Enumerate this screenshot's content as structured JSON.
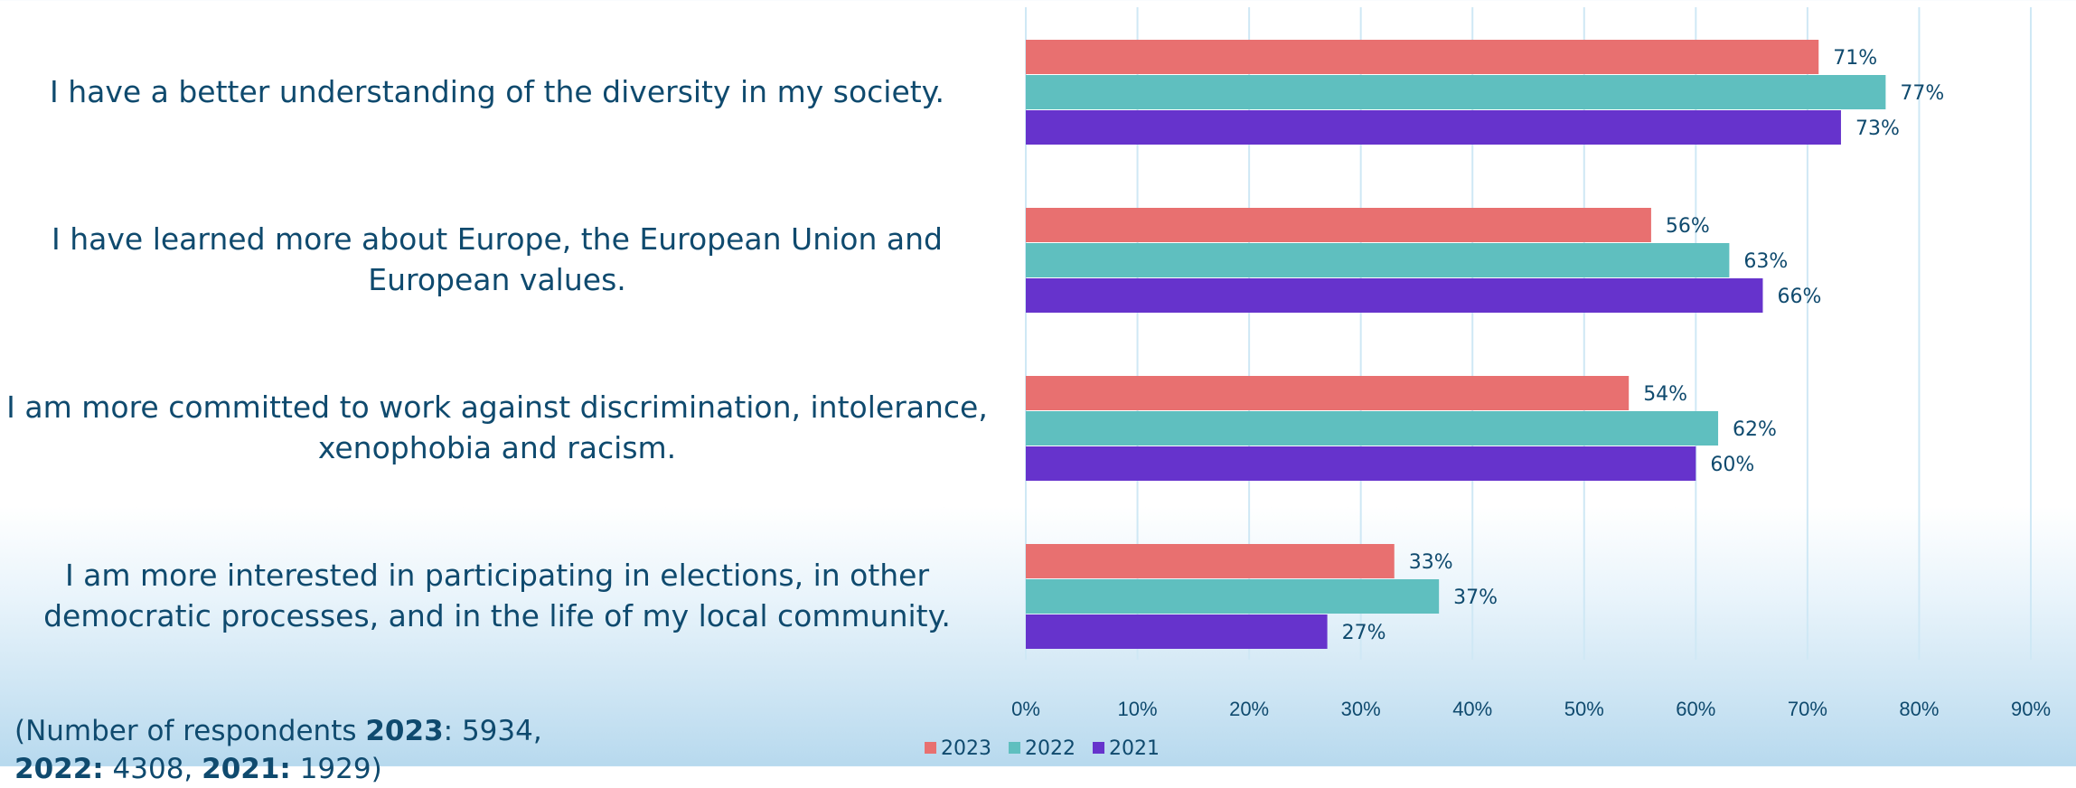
{
  "chart_data": {
    "type": "bar",
    "orientation": "horizontal",
    "categories": [
      "I have a better understanding of the diversity in my society.",
      "I have learned more about Europe, the European Union and European values.",
      "I am more committed to work against discrimination, intolerance, xenophobia and racism.",
      "I am more interested in participating in elections, in other democratic processes, and in the life of my local community."
    ],
    "series": [
      {
        "name": "2023",
        "color": "#e87070",
        "values": [
          71,
          56,
          54,
          33
        ]
      },
      {
        "name": "2022",
        "color": "#5fbfbf",
        "values": [
          77,
          63,
          62,
          37
        ]
      },
      {
        "name": "2021",
        "color": "#6633cc",
        "values": [
          73,
          66,
          60,
          27
        ]
      }
    ],
    "xlim": [
      0,
      90
    ],
    "xticks": [
      "0%",
      "10%",
      "20%",
      "30%",
      "40%",
      "50%",
      "60%",
      "70%",
      "80%",
      "90%"
    ],
    "value_suffix": "%",
    "grid": true,
    "legend": "bottom",
    "title": "",
    "xlabel": "",
    "ylabel": ""
  },
  "labels": {
    "cat0_line1": "I have a better understanding of the diversity in my society.",
    "cat1_line1": "I have learned more about Europe, the European Union and",
    "cat1_line2": "European values.",
    "cat2_line1": "I am more committed to work against discrimination, intolerance,",
    "cat2_line2": "xenophobia and racism.",
    "cat3_line1": "I am more interested in participating in elections, in other",
    "cat3_line2": "democratic processes, and in the life of my local community."
  },
  "note": {
    "prefix": "(Number of respondents ",
    "y2023": "2023",
    "v2023": ": 5934,",
    "y2022": "2022:",
    "v2022": " 4308, ",
    "y2021": "2021:",
    "v2021": " 1929)"
  },
  "colors": {
    "text": "#0f4a6e",
    "grid": "#cfe8f5"
  }
}
